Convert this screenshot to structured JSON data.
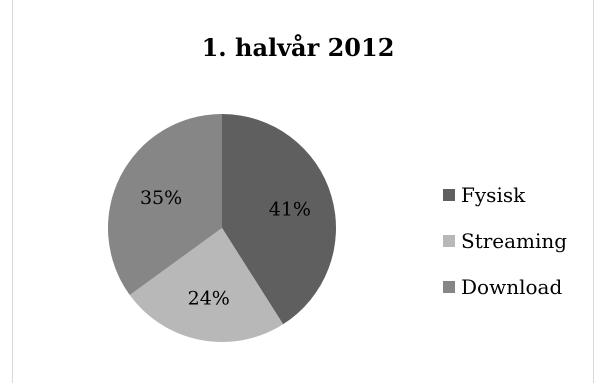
{
  "chart_data": {
    "type": "pie",
    "title": "1. halvår 2012",
    "categories": [
      "Fysisk",
      "Streaming",
      "Download"
    ],
    "values": [
      41,
      24,
      35
    ],
    "labels": [
      "41%",
      "24%",
      "35%"
    ],
    "colors": [
      "#5f5f5f",
      "#b8b8b8",
      "#868686"
    ],
    "legend_position": "right"
  }
}
